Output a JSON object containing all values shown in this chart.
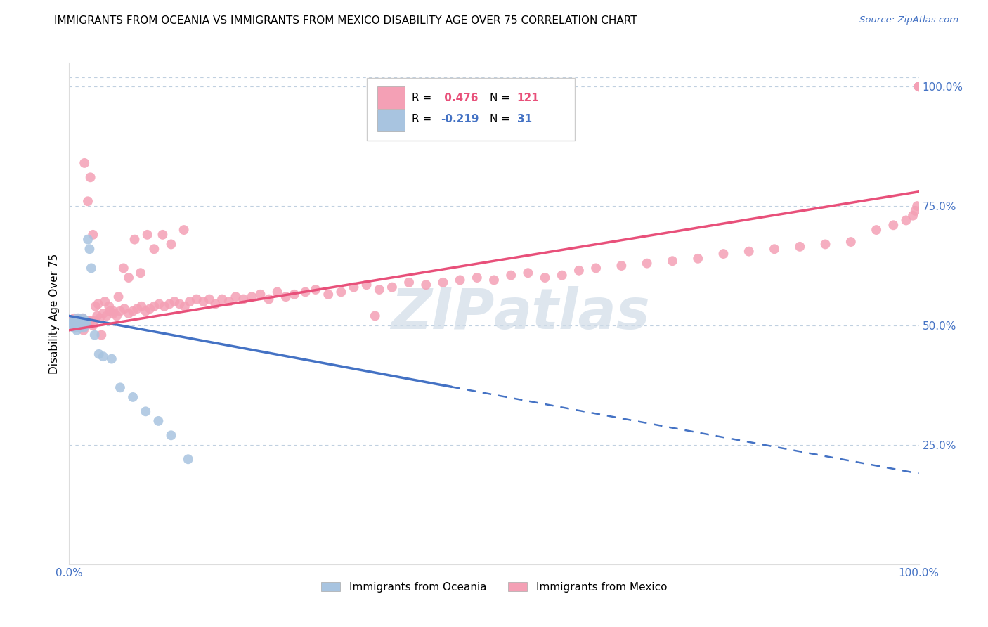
{
  "title": "IMMIGRANTS FROM OCEANIA VS IMMIGRANTS FROM MEXICO DISABILITY AGE OVER 75 CORRELATION CHART",
  "source": "Source: ZipAtlas.com",
  "ylabel": "Disability Age Over 75",
  "right_yticks": [
    "100.0%",
    "75.0%",
    "50.0%",
    "25.0%"
  ],
  "right_ytick_values": [
    1.0,
    0.75,
    0.5,
    0.25
  ],
  "oceania_color": "#a8c4e0",
  "mexico_color": "#f4a0b5",
  "trendline_oceania_color": "#4472c4",
  "trendline_mexico_color": "#e8507a",
  "background_color": "#ffffff",
  "grid_color": "#c0d0e0",
  "watermark_color": "#d0dce8",
  "oceania_x": [
    0.003,
    0.004,
    0.005,
    0.006,
    0.007,
    0.008,
    0.009,
    0.01,
    0.011,
    0.012,
    0.013,
    0.014,
    0.015,
    0.016,
    0.017,
    0.018,
    0.019,
    0.02,
    0.022,
    0.024,
    0.026,
    0.03,
    0.035,
    0.04,
    0.05,
    0.06,
    0.075,
    0.09,
    0.105,
    0.12,
    0.14
  ],
  "oceania_y": [
    0.505,
    0.5,
    0.51,
    0.495,
    0.51,
    0.5,
    0.49,
    0.515,
    0.505,
    0.495,
    0.51,
    0.5,
    0.505,
    0.515,
    0.495,
    0.5,
    0.51,
    0.505,
    0.68,
    0.66,
    0.62,
    0.48,
    0.44,
    0.435,
    0.43,
    0.37,
    0.35,
    0.32,
    0.3,
    0.27,
    0.22
  ],
  "mexico_x": [
    0.003,
    0.004,
    0.005,
    0.006,
    0.007,
    0.008,
    0.009,
    0.01,
    0.011,
    0.012,
    0.013,
    0.014,
    0.015,
    0.016,
    0.017,
    0.018,
    0.019,
    0.02,
    0.022,
    0.024,
    0.026,
    0.028,
    0.03,
    0.033,
    0.036,
    0.04,
    0.044,
    0.048,
    0.052,
    0.056,
    0.06,
    0.065,
    0.07,
    0.075,
    0.08,
    0.085,
    0.09,
    0.095,
    0.1,
    0.106,
    0.112,
    0.118,
    0.124,
    0.13,
    0.136,
    0.142,
    0.15,
    0.158,
    0.165,
    0.172,
    0.18,
    0.188,
    0.196,
    0.205,
    0.215,
    0.225,
    0.235,
    0.245,
    0.255,
    0.265,
    0.278,
    0.29,
    0.305,
    0.32,
    0.335,
    0.35,
    0.365,
    0.38,
    0.4,
    0.42,
    0.44,
    0.46,
    0.48,
    0.5,
    0.52,
    0.54,
    0.56,
    0.58,
    0.6,
    0.62,
    0.65,
    0.68,
    0.71,
    0.74,
    0.77,
    0.8,
    0.83,
    0.86,
    0.89,
    0.92,
    0.95,
    0.97,
    0.985,
    0.993,
    0.996,
    0.998,
    1.0,
    1.0,
    1.0,
    1.0,
    0.018,
    0.022,
    0.025,
    0.028,
    0.031,
    0.034,
    0.038,
    0.042,
    0.047,
    0.052,
    0.058,
    0.064,
    0.07,
    0.077,
    0.084,
    0.092,
    0.1,
    0.11,
    0.12,
    0.135,
    0.36
  ],
  "mexico_y": [
    0.51,
    0.505,
    0.5,
    0.515,
    0.495,
    0.51,
    0.505,
    0.5,
    0.515,
    0.505,
    0.495,
    0.51,
    0.5,
    0.515,
    0.49,
    0.505,
    0.51,
    0.5,
    0.51,
    0.505,
    0.51,
    0.5,
    0.51,
    0.52,
    0.515,
    0.525,
    0.52,
    0.53,
    0.525,
    0.52,
    0.53,
    0.535,
    0.525,
    0.53,
    0.535,
    0.54,
    0.53,
    0.535,
    0.54,
    0.545,
    0.54,
    0.545,
    0.55,
    0.545,
    0.54,
    0.55,
    0.555,
    0.55,
    0.555,
    0.545,
    0.555,
    0.55,
    0.56,
    0.555,
    0.56,
    0.565,
    0.555,
    0.57,
    0.56,
    0.565,
    0.57,
    0.575,
    0.565,
    0.57,
    0.58,
    0.585,
    0.575,
    0.58,
    0.59,
    0.585,
    0.59,
    0.595,
    0.6,
    0.595,
    0.605,
    0.61,
    0.6,
    0.605,
    0.615,
    0.62,
    0.625,
    0.63,
    0.635,
    0.64,
    0.65,
    0.655,
    0.66,
    0.665,
    0.67,
    0.675,
    0.7,
    0.71,
    0.72,
    0.73,
    0.74,
    0.75,
    1.0,
    1.0,
    1.0,
    1.0,
    0.84,
    0.76,
    0.81,
    0.69,
    0.54,
    0.545,
    0.48,
    0.55,
    0.54,
    0.53,
    0.56,
    0.62,
    0.6,
    0.68,
    0.61,
    0.69,
    0.66,
    0.69,
    0.67,
    0.7,
    0.52
  ],
  "trendline_oc_x0": 0.0,
  "trendline_oc_y0": 0.52,
  "trendline_oc_slope": -0.33,
  "trendline_oc_solid_end": 0.45,
  "trendline_mx_x0": 0.0,
  "trendline_mx_y0": 0.49,
  "trendline_mx_slope": 0.29,
  "xlim": [
    0.0,
    1.0
  ],
  "ylim": [
    0.0,
    1.05
  ]
}
